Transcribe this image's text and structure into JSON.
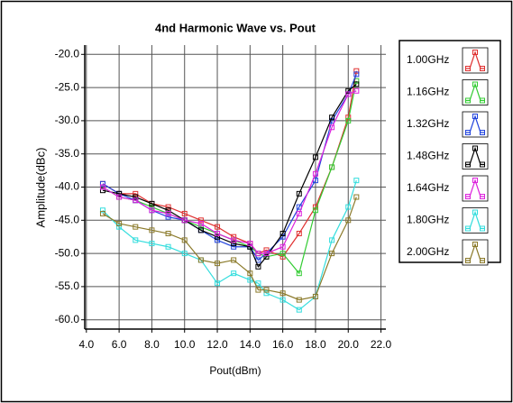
{
  "chart_data": {
    "type": "line",
    "title": "4nd Harmonic Wave vs. Pout",
    "x_label": "Pout(dBm)",
    "y_label": "Amplitude(dBc)",
    "xlim": [
      3.9,
      22.3
    ],
    "ylim": [
      -61.4,
      -18.6
    ],
    "xticks": [
      {
        "value": 4,
        "label": "4.0"
      },
      {
        "value": 6,
        "label": "6.0"
      },
      {
        "value": 8,
        "label": "8.0"
      },
      {
        "value": 10,
        "label": "10.0"
      },
      {
        "value": 12,
        "label": "12.0"
      },
      {
        "value": 14,
        "label": "14.0"
      },
      {
        "value": 16,
        "label": "16.0"
      },
      {
        "value": 18,
        "label": "18.0"
      },
      {
        "value": 20,
        "label": "20.0"
      },
      {
        "value": 22,
        "label": "22.0"
      }
    ],
    "yticks": [
      {
        "value": -20,
        "label": "-20.0"
      },
      {
        "value": -25,
        "label": "-25.0"
      },
      {
        "value": -30,
        "label": "-30.0"
      },
      {
        "value": -35,
        "label": "-35.0"
      },
      {
        "value": -40,
        "label": "-40.0"
      },
      {
        "value": -45,
        "label": "-45.0"
      },
      {
        "value": -50,
        "label": "-50.0"
      },
      {
        "value": -55,
        "label": "-55.0"
      },
      {
        "value": -60,
        "label": "-60.0"
      }
    ],
    "grid": true,
    "legend": "right",
    "x": [
      5,
      6,
      7,
      8,
      9,
      10,
      11,
      12,
      13,
      14,
      14.5,
      15,
      16,
      17,
      18,
      19,
      20,
      20.5
    ],
    "series": [
      {
        "name": "1.00GHz",
        "color": "#e03030",
        "values": [
          -39.5,
          -41,
          -41,
          -42.5,
          -43,
          -44,
          -45,
          -46,
          -47.5,
          -48.5,
          -50,
          -49.5,
          -50.5,
          -47,
          -43,
          -37,
          -29.5,
          -22.5
        ]
      },
      {
        "name": "1.16GHz",
        "color": "#33cc33",
        "values": [
          -40,
          -41.5,
          -42,
          -43,
          -44,
          -45,
          -46,
          -47,
          -48,
          -49,
          -50,
          -50.5,
          -50,
          -53,
          -43.5,
          -37,
          -30,
          -24
        ]
      },
      {
        "name": "1.32GHz",
        "color": "#2244dd",
        "values": [
          -39.5,
          -41,
          -42,
          -43.5,
          -44.5,
          -45,
          -46.5,
          -48,
          -49,
          -49,
          -51,
          -50,
          -47.5,
          -43,
          -39,
          -30,
          -26,
          -23
        ]
      },
      {
        "name": "1.48GHz",
        "color": "#000000",
        "values": [
          -40.5,
          -41,
          -41.5,
          -42.5,
          -43.5,
          -45,
          -46.5,
          -47.5,
          -48.5,
          -49,
          -52,
          -50.5,
          -47,
          -41,
          -35.5,
          -29.5,
          -25.5,
          -24.5
        ]
      },
      {
        "name": "1.64GHz",
        "color": "#dd22dd",
        "values": [
          -40,
          -41.5,
          -42,
          -43.5,
          -44,
          -45,
          -45.5,
          -47,
          -48,
          -48.5,
          -50,
          -50,
          -49,
          -44,
          -38,
          -31,
          -26,
          -25.5
        ]
      },
      {
        "name": "1.80GHz",
        "color": "#33dddd",
        "values": [
          -43.5,
          -46,
          -48,
          -48.5,
          -49,
          -50,
          -51,
          -54.5,
          -53,
          -54,
          -54.5,
          -56,
          -57,
          -58.5,
          -56.5,
          -48,
          -43,
          -39
        ]
      },
      {
        "name": "2.00GHz",
        "color": "#8b7a2a",
        "values": [
          -44,
          -45.5,
          -46,
          -46.5,
          -47,
          -48,
          -51,
          -51.5,
          -51,
          -53,
          -55.5,
          -55.5,
          -56,
          -57,
          -56.5,
          -50,
          -45,
          -41.5
        ]
      }
    ]
  }
}
